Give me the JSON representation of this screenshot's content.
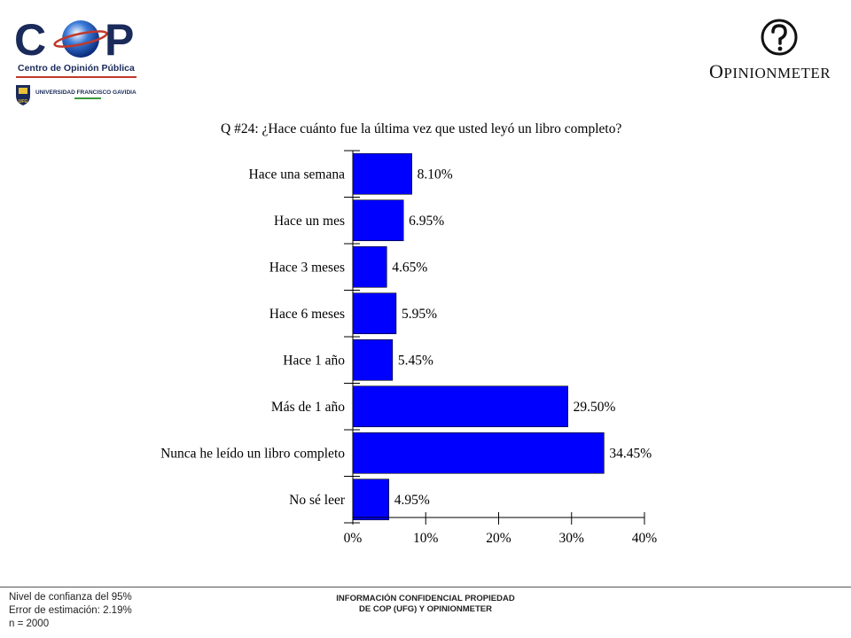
{
  "branding": {
    "cop_logo_text": "COP",
    "cop_subtitle": "Centro de Opinión Pública",
    "ufg_name": "UNIVERSIDAD FRANCISCO GAVIDIA",
    "ufg_crest_text": "UFG",
    "om_logo_first": "O",
    "om_logo_rest": "PINIONMETER"
  },
  "colors": {
    "bar": "#0000ff",
    "cop_red": "#c0392b",
    "cop_navy": "#1a2a5a"
  },
  "chart_data": {
    "type": "bar",
    "orientation": "horizontal",
    "title": "Q #24: ¿Hace cuánto fue la última vez que usted leyó un libro completo?",
    "categories": [
      "Hace una semana",
      "Hace un mes",
      "Hace 3 meses",
      "Hace 6 meses",
      "Hace 1 año",
      "Más de 1 año",
      "Nunca he leído un libro completo",
      "No sé leer"
    ],
    "values": [
      8.1,
      6.95,
      4.65,
      5.95,
      5.45,
      29.5,
      34.45,
      4.95
    ],
    "value_labels": [
      "8.10%",
      "6.95%",
      "4.65%",
      "5.95%",
      "5.45%",
      "29.50%",
      "34.45%",
      "4.95%"
    ],
    "xlim": [
      0,
      40
    ],
    "xticks": [
      0,
      10,
      20,
      30,
      40
    ],
    "xtick_labels": [
      "0%",
      "10%",
      "20%",
      "30%",
      "40%"
    ],
    "grid": false,
    "legend": "none"
  },
  "footer": {
    "stats": [
      "Nivel de confianza del 95%",
      "Error de estimación: 2.19%",
      "n = 2000"
    ],
    "confidential": [
      "INFORMACIÓN CONFIDENCIAL PROPIEDAD",
      "DE COP (UFG) Y OPINIONMETER"
    ]
  }
}
